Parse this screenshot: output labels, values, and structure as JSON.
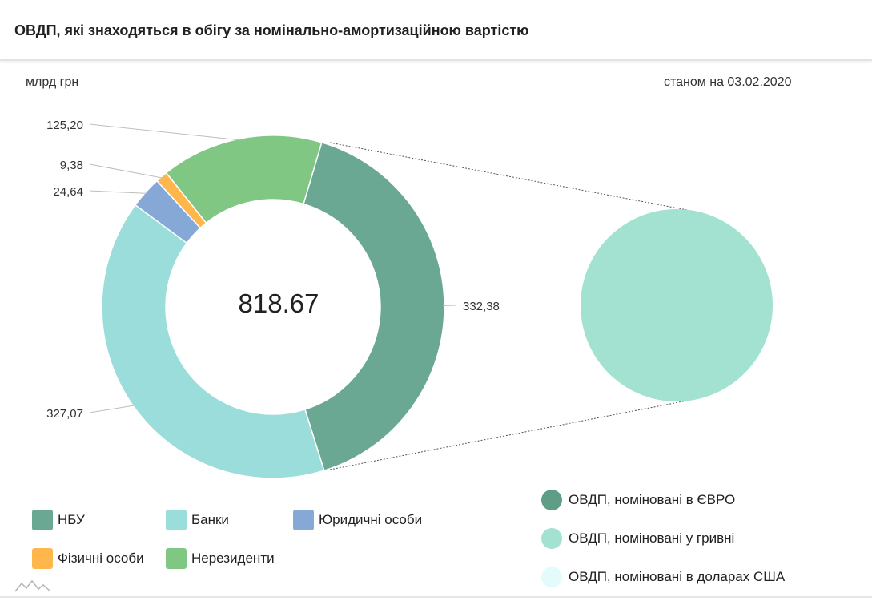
{
  "header": {
    "title": "ОВДП, які знаходяться в обігу за номінально-амортизаційною вартістю"
  },
  "unit_label": "млрд грн",
  "as_of_label": "станом на 03.02.2020",
  "chart_data": [
    {
      "type": "pie",
      "variant": "donut",
      "center_label": "818.67",
      "series": [
        {
          "name": "НБУ",
          "value": 332.38,
          "value_label": "332,38",
          "color": "#6aa893"
        },
        {
          "name": "Банки",
          "value": 327.07,
          "value_label": "327,07",
          "color": "#9addda"
        },
        {
          "name": "Юридичні особи",
          "value": 24.64,
          "value_label": "24,64",
          "color": "#86a8d6"
        },
        {
          "name": "Фізичні особи",
          "value": 9.38,
          "value_label": "9,38",
          "color": "#ffb74d"
        },
        {
          "name": "Нерезиденти",
          "value": 125.2,
          "value_label": "125,20",
          "color": "#81c784"
        }
      ]
    },
    {
      "type": "pie",
      "series": [
        {
          "name": "ОВДП, номіновані в ЄВРО",
          "value": 0,
          "color": "#5f9e86"
        },
        {
          "name": "ОВДП, номіновані у гривні",
          "value": 100,
          "color": "#a3e2d1"
        },
        {
          "name": "ОВДП, номіновані в доларах США",
          "value": 0,
          "color": "#e4fbfb"
        }
      ]
    }
  ]
}
